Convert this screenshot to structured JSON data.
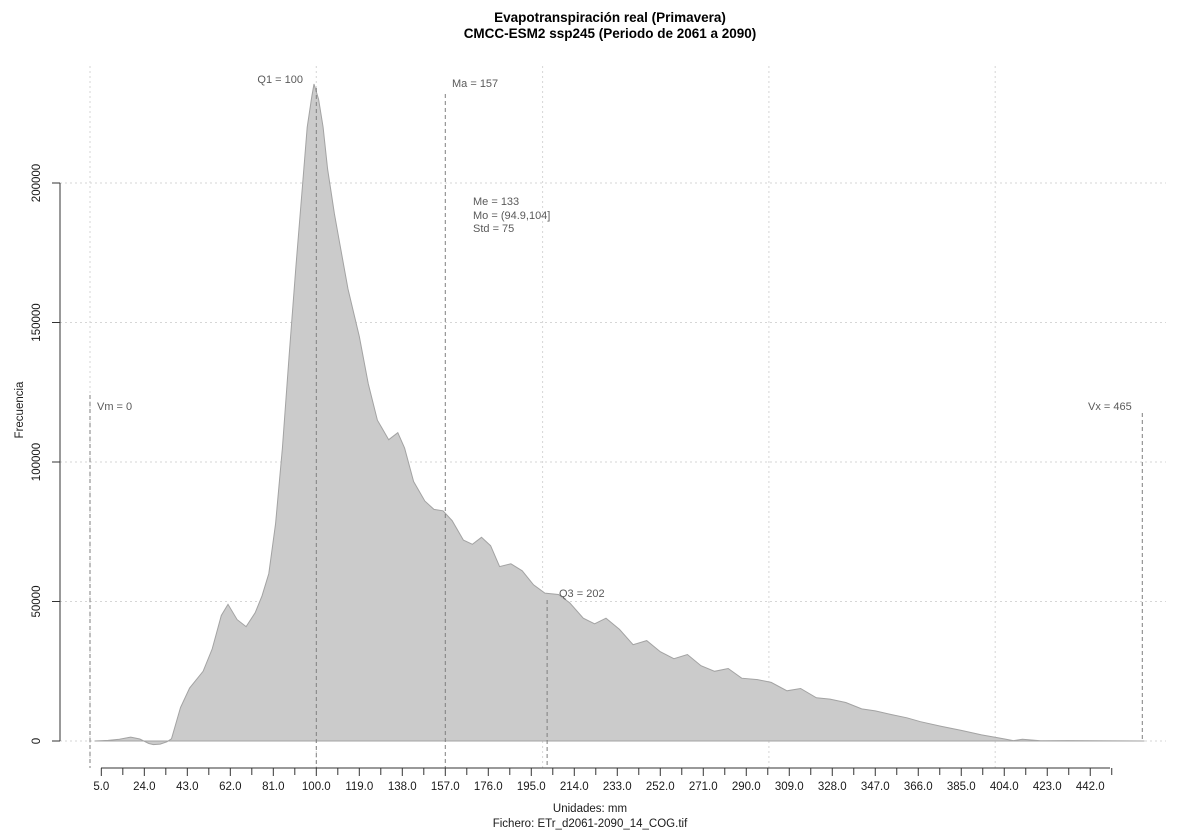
{
  "page": {
    "title_line1": "Evapotranspiración real (Primavera)",
    "title_line2": "CMCC-ESM2 ssp245 (Periodo de 2061 a 2090)",
    "footer_line1": "Unidades: mm",
    "footer_line2": "Fichero: ETr_d2061-2090_14_COG.tif"
  },
  "annotations": {
    "q1": "Q1 = 100",
    "ma": "Ma = 157",
    "me": "Me = 133",
    "mo": "Mo = (94.9,104]",
    "std": "Std = 75",
    "vm": "Vm = 0",
    "vx": "Vx = 465",
    "q3": "Q3 = 202"
  },
  "chart_data": {
    "type": "area",
    "title": "Evapotranspiración real (Primavera)",
    "subtitle": "CMCC-ESM2 ssp245 (Periodo de 2061 a 2090)",
    "xlabel": "Unidades: mm",
    "ylabel": "Frecuencia",
    "x_tick_values": [
      5,
      24,
      43,
      62,
      81,
      100,
      119,
      138,
      157,
      176,
      195,
      214,
      233,
      252,
      271,
      290,
      309,
      328,
      347,
      366,
      385,
      404,
      423,
      442
    ],
    "x_tick_labels": [
      "5.0",
      "24.0",
      "43.0",
      "62.0",
      "81.0",
      "100.0",
      "119.0",
      "138.0",
      "157.0",
      "176.0",
      "195.0",
      "214.0",
      "233.0",
      "252.0",
      "271.0",
      "290.0",
      "309.0",
      "328.0",
      "347.0",
      "366.0",
      "385.0",
      "404.0",
      "423.0",
      "442.0"
    ],
    "x_minor_tick_start": 14.5,
    "x_minor_tick_step": 19,
    "x_minor_tick_count": 24,
    "y_tick_values": [
      0,
      50000,
      100000,
      150000,
      200000
    ],
    "y_tick_labels": [
      "0",
      "50000",
      "100000",
      "150000",
      "200000"
    ],
    "xlim": [
      0,
      466
    ],
    "ylim": [
      0,
      235500
    ],
    "grid": {
      "x_values": [
        0,
        100,
        200,
        300,
        400
      ],
      "y_values": [
        0,
        50000,
        100000,
        150000,
        200000
      ]
    },
    "stats": {
      "Vm": 0,
      "Q1": 100,
      "Me": 133,
      "Ma": 157,
      "Q3": 202,
      "Vx": 465,
      "Std": 75,
      "Mo": "(94.9,104]"
    },
    "stat_line_values": {
      "Q1": 100,
      "Ma": 157,
      "Q3": 202,
      "Vm": 0,
      "Vx": 465
    },
    "points": [
      [
        2,
        0
      ],
      [
        8,
        200
      ],
      [
        13,
        600
      ],
      [
        18,
        1400
      ],
      [
        22,
        700
      ],
      [
        26,
        -900
      ],
      [
        28,
        -1300
      ],
      [
        31,
        -1100
      ],
      [
        34,
        -300
      ],
      [
        36,
        800
      ],
      [
        40,
        12000
      ],
      [
        44,
        19000
      ],
      [
        50,
        25000
      ],
      [
        54,
        33000
      ],
      [
        58,
        45000
      ],
      [
        61,
        49000
      ],
      [
        65,
        43500
      ],
      [
        69,
        41000
      ],
      [
        73,
        46000
      ],
      [
        76,
        52000
      ],
      [
        79,
        60000
      ],
      [
        82,
        78000
      ],
      [
        85,
        105000
      ],
      [
        88,
        138000
      ],
      [
        91,
        170000
      ],
      [
        94,
        200000
      ],
      [
        96,
        220000
      ],
      [
        98,
        231000
      ],
      [
        99,
        235500
      ],
      [
        101,
        230000
      ],
      [
        103,
        220000
      ],
      [
        105,
        205000
      ],
      [
        108,
        189000
      ],
      [
        110,
        180000
      ],
      [
        114,
        162000
      ],
      [
        119,
        145000
      ],
      [
        123,
        128000
      ],
      [
        127,
        115000
      ],
      [
        132,
        108000
      ],
      [
        136,
        110500
      ],
      [
        139,
        105000
      ],
      [
        143,
        93000
      ],
      [
        148,
        86000
      ],
      [
        152,
        83000
      ],
      [
        156,
        82500
      ],
      [
        160,
        79000
      ],
      [
        165,
        72000
      ],
      [
        169,
        70500
      ],
      [
        173,
        73000
      ],
      [
        177,
        70000
      ],
      [
        181,
        62500
      ],
      [
        186,
        63500
      ],
      [
        191,
        61000
      ],
      [
        196,
        56000
      ],
      [
        201,
        53000
      ],
      [
        207,
        52500
      ],
      [
        212,
        49500
      ],
      [
        218,
        44000
      ],
      [
        223,
        42000
      ],
      [
        228,
        44000
      ],
      [
        234,
        40000
      ],
      [
        240,
        34500
      ],
      [
        246,
        36000
      ],
      [
        252,
        32000
      ],
      [
        258,
        29500
      ],
      [
        264,
        31000
      ],
      [
        270,
        27000
      ],
      [
        276,
        25000
      ],
      [
        282,
        26000
      ],
      [
        288,
        22500
      ],
      [
        295,
        22000
      ],
      [
        301,
        21000
      ],
      [
        308,
        18000
      ],
      [
        314,
        18800
      ],
      [
        321,
        15500
      ],
      [
        327,
        15000
      ],
      [
        334,
        13800
      ],
      [
        341,
        11500
      ],
      [
        347,
        10800
      ],
      [
        354,
        9500
      ],
      [
        361,
        8300
      ],
      [
        367,
        6900
      ],
      [
        376,
        5300
      ],
      [
        385,
        3800
      ],
      [
        394,
        2200
      ],
      [
        403,
        900
      ],
      [
        408,
        150
      ],
      [
        412,
        600
      ],
      [
        420,
        80
      ],
      [
        432,
        150
      ],
      [
        444,
        80
      ],
      [
        456,
        40
      ],
      [
        466,
        0
      ]
    ],
    "colors": {
      "fill": "#cbcbcb",
      "stroke": "#a3a3a3",
      "grid": "#d6d6d6",
      "stat_line": "#7f7f7f",
      "annotation_text": "#5a5a5a",
      "axis": "#333333",
      "tick_text": "#1a1a1a"
    }
  }
}
